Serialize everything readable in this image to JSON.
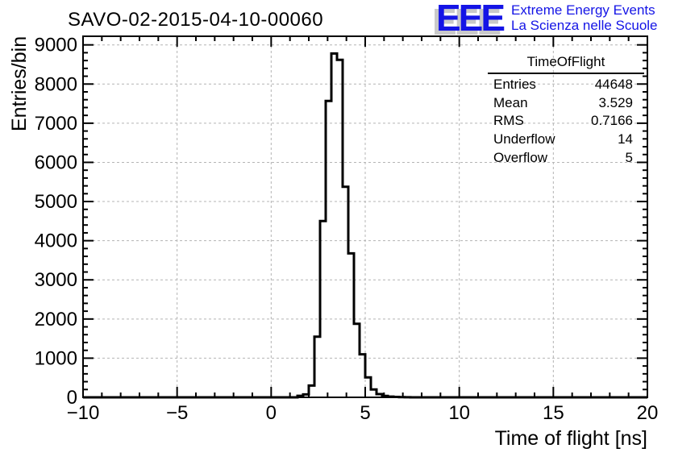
{
  "header": {
    "title": "SAVO-02-2015-04-10-00060"
  },
  "logo": {
    "acronym": "EEE",
    "line1": "Extreme Energy Events",
    "line2": "La Scienza nelle Scuole",
    "color": "#1414e6",
    "shadow_color": "#c9c9c9"
  },
  "axes": {
    "x_title": "Time of flight [ns]",
    "y_title": "Entries/bin"
  },
  "stats_box": {
    "title": "TimeOfFlight",
    "rows": [
      {
        "label": "Entries",
        "value": "44648"
      },
      {
        "label": "Mean",
        "value": "3.529"
      },
      {
        "label": "RMS",
        "value": "0.7166"
      },
      {
        "label": "Underflow",
        "value": "14"
      },
      {
        "label": "Overflow",
        "value": "5"
      }
    ]
  },
  "chart_data": {
    "type": "bar",
    "subtype": "histogram-step-outline",
    "title": "SAVO-02-2015-04-10-00060",
    "xlabel": "Time of flight [ns]",
    "ylabel": "Entries/bin",
    "xlim": [
      -10,
      20
    ],
    "ylim": [
      0,
      9220
    ],
    "grid": true,
    "grid_color": "#b4b4b4",
    "line_color": "#000000",
    "x_ticks": [
      {
        "v": -10,
        "label": "−10"
      },
      {
        "v": -5,
        "label": "−5"
      },
      {
        "v": 0,
        "label": "0"
      },
      {
        "v": 5,
        "label": "5"
      },
      {
        "v": 10,
        "label": "10"
      },
      {
        "v": 15,
        "label": "15"
      },
      {
        "v": 20,
        "label": "20"
      }
    ],
    "x_minor_step": 1,
    "y_ticks": [
      {
        "v": 0,
        "label": "0"
      },
      {
        "v": 1000,
        "label": "1000"
      },
      {
        "v": 2000,
        "label": "2000"
      },
      {
        "v": 3000,
        "label": "3000"
      },
      {
        "v": 4000,
        "label": "4000"
      },
      {
        "v": 5000,
        "label": "5000"
      },
      {
        "v": 6000,
        "label": "6000"
      },
      {
        "v": 7000,
        "label": "7000"
      },
      {
        "v": 8000,
        "label": "8000"
      },
      {
        "v": 9000,
        "label": "9000"
      }
    ],
    "y_minor_step": 200,
    "bins": {
      "low_edge_start": 1.4,
      "width": 0.3,
      "values": [
        40,
        75,
        300,
        1550,
        4500,
        7570,
        8780,
        8620,
        5375,
        3675,
        1880,
        1100,
        508,
        200,
        82,
        35,
        18,
        10,
        6,
        3
      ],
      "note": "all other bins in [-10,20] are 0; values estimated from pixel heights"
    },
    "stats": {
      "entries": 44648,
      "mean": 3.529,
      "rms": 0.7166,
      "underflow": 14,
      "overflow": 5
    },
    "legend_position": "none"
  }
}
